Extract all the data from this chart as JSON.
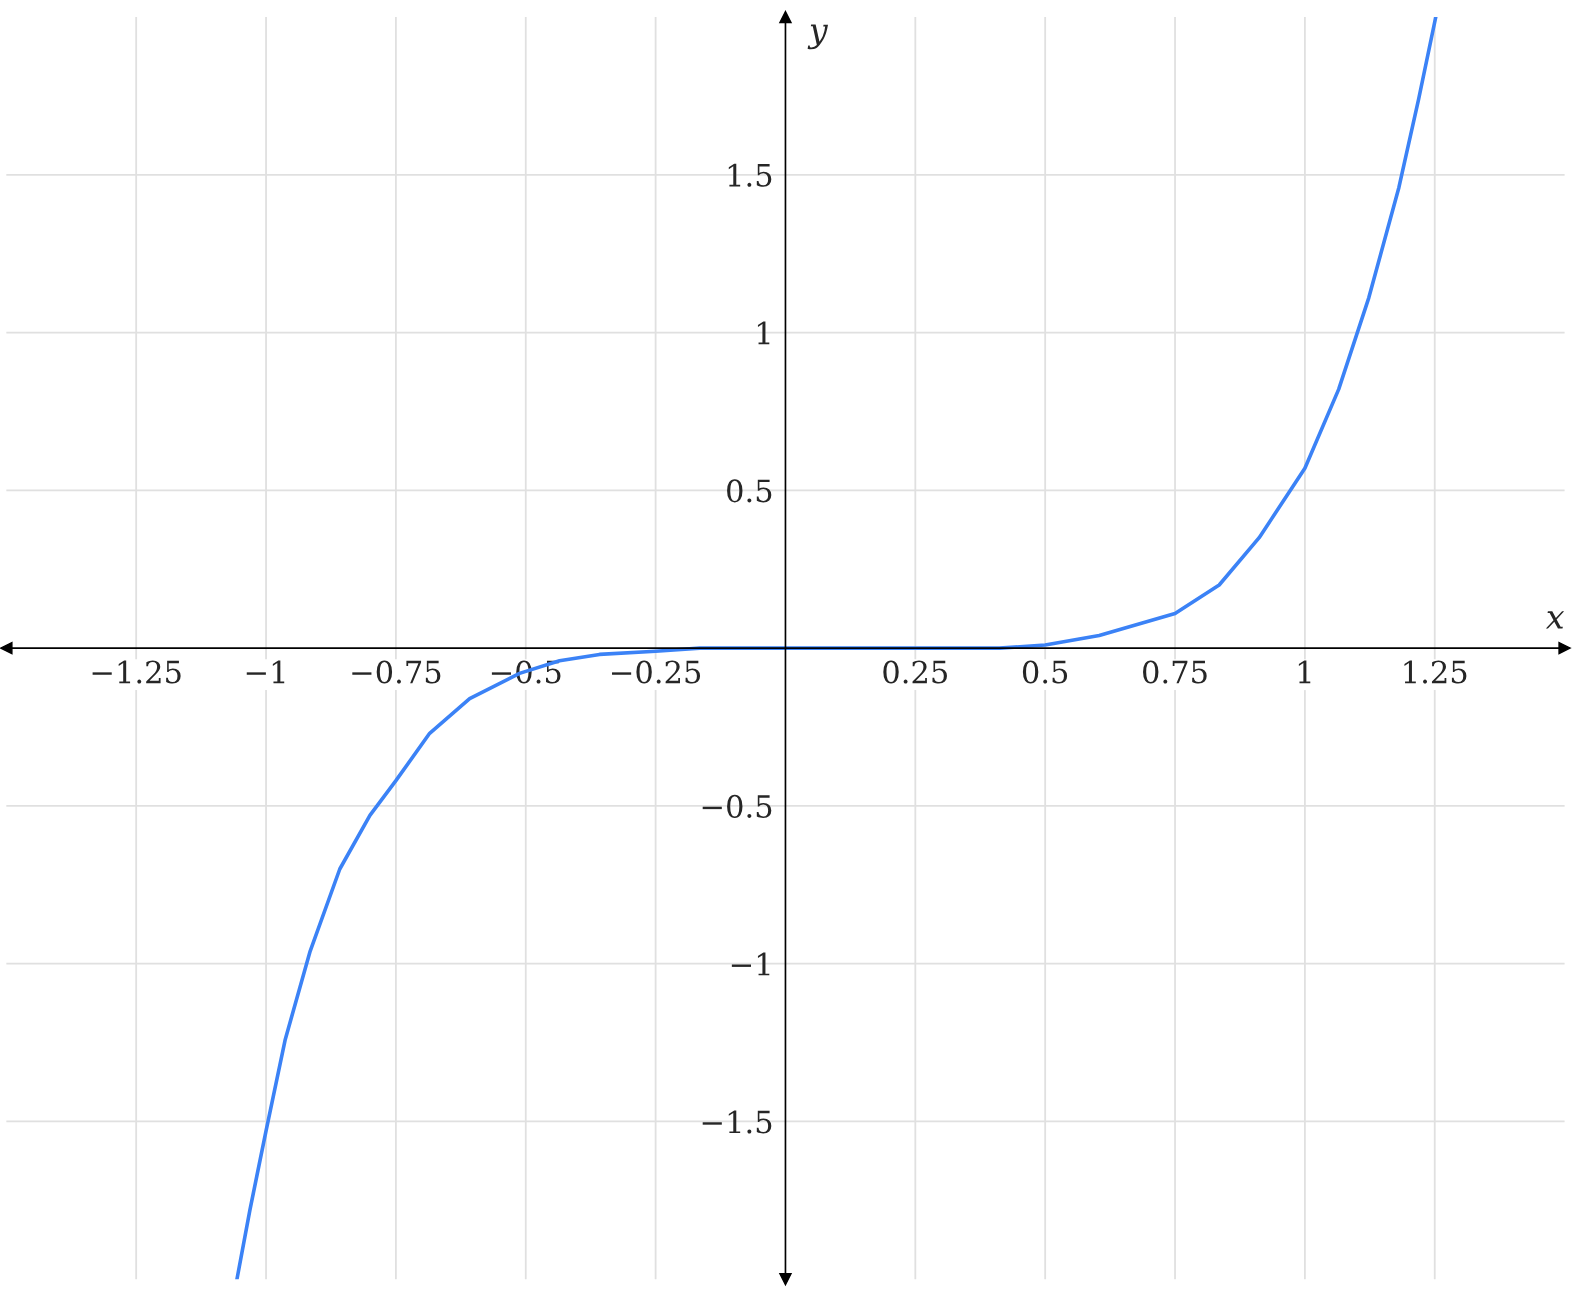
{
  "chart_data": {
    "type": "line",
    "xlabel": "x",
    "ylabel": "y",
    "x": [
      -1.056,
      -1.031,
      -1.0,
      -0.963,
      -0.915,
      -0.858,
      -0.8,
      -0.75,
      -0.685,
      -0.608,
      -0.512,
      -0.435,
      -0.358,
      -0.25,
      -0.165,
      0,
      0.219,
      0.412,
      0.5,
      0.604,
      0.75,
      0.835,
      0.912,
      1.0,
      1.065,
      1.123,
      1.181,
      1.219,
      1.252
    ],
    "series": [
      {
        "color": "#3b82f6",
        "values": [
          -2.0,
          -1.78,
          -1.53,
          -1.24,
          -0.96,
          -0.7,
          -0.53,
          -0.42,
          -0.27,
          -0.16,
          -0.08,
          -0.04,
          -0.02,
          -0.01,
          0,
          0,
          0,
          0,
          0.01,
          0.04,
          0.11,
          0.2,
          0.35,
          0.57,
          0.82,
          1.11,
          1.46,
          1.74,
          2.0
        ]
      }
    ],
    "xlim": [
      -1.5,
      1.5
    ],
    "ylim": [
      -2,
      2
    ],
    "xticks": [
      {
        "value": -1.25,
        "label": "−1.25"
      },
      {
        "value": -1,
        "label": "−1"
      },
      {
        "value": -0.75,
        "label": "−0.75"
      },
      {
        "value": -0.5,
        "label": "−0.5"
      },
      {
        "value": -0.25,
        "label": "−0.25"
      },
      0.25,
      0.5,
      0.75,
      1,
      1.25
    ],
    "yticks": [
      {
        "value": -1.5,
        "label": "−1.5"
      },
      {
        "value": -1,
        "label": "−1"
      },
      {
        "value": -0.5,
        "label": "−0.5"
      },
      0.5,
      1,
      1.5
    ],
    "grid": true,
    "marker": "none",
    "line_style": "solid"
  }
}
